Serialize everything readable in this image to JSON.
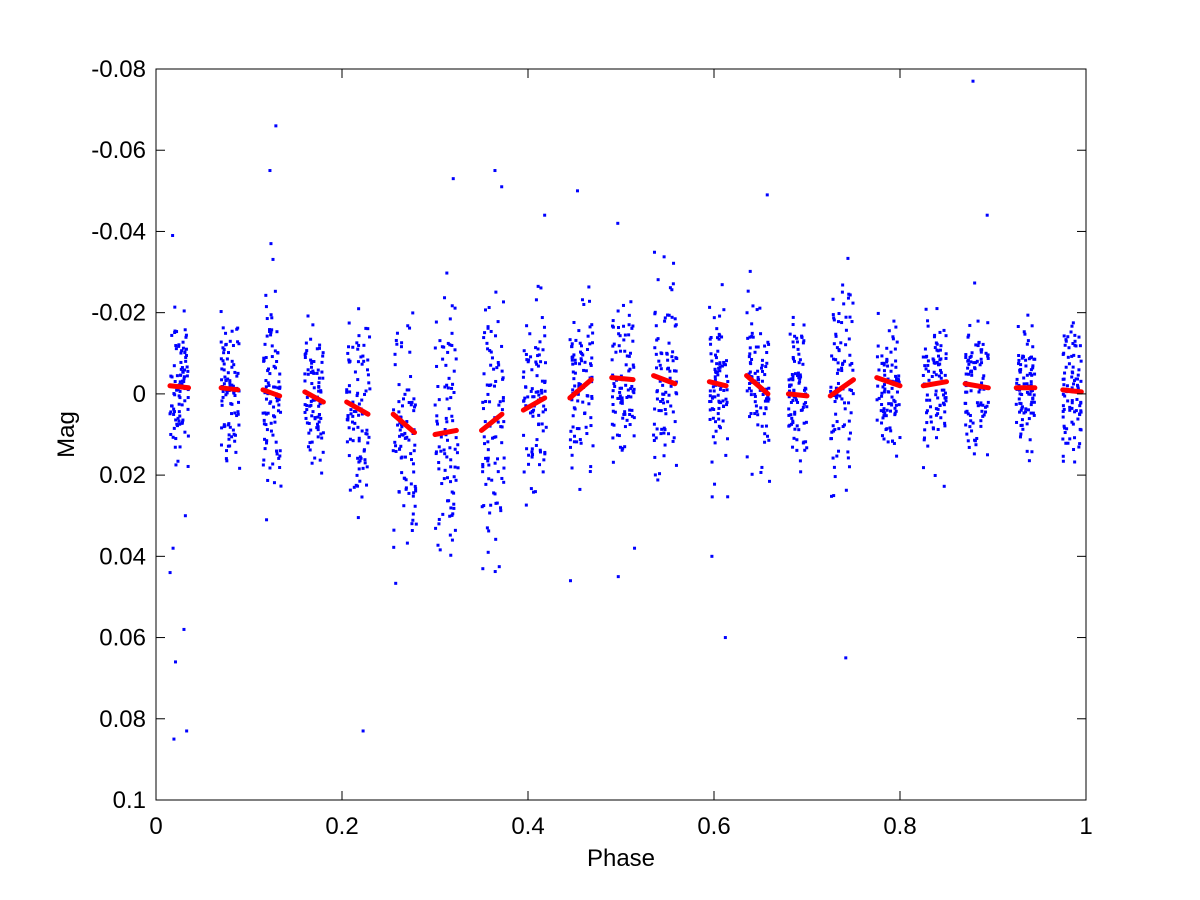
{
  "chart_data": {
    "type": "scatter",
    "title": "",
    "xlabel": "Phase",
    "ylabel": "Mag",
    "xlim": [
      0,
      1
    ],
    "ylim": [
      -0.08,
      0.1
    ],
    "y_reversed": true,
    "grid": false,
    "x_ticks": [
      "0",
      "0.2",
      "0.4",
      "0.6",
      "0.8",
      "1"
    ],
    "x_tick_values": [
      0,
      0.2,
      0.4,
      0.6,
      0.8,
      1.0
    ],
    "y_ticks": [
      "-0.08",
      "-0.06",
      "-0.04",
      "-0.02",
      "0",
      "0.02",
      "0.04",
      "0.06",
      "0.08",
      "0.1"
    ],
    "y_tick_values": [
      -0.08,
      -0.06,
      -0.04,
      -0.02,
      0,
      0.02,
      0.04,
      0.06,
      0.08,
      0.1
    ],
    "colors": {
      "observations": "#0000ff",
      "model": "#ff0000"
    },
    "series": [
      {
        "marker": "dot",
        "clusters": [
          {
            "x": [
              0.015,
              0.035
            ],
            "y_range": [
              -0.027,
              0.026
            ],
            "outliers": [
              -0.039,
              0.03,
              0.038,
              0.044,
              0.058,
              0.066,
              0.083,
              0.085
            ]
          },
          {
            "x": [
              0.07,
              0.09
            ],
            "y_range": [
              -0.029,
              0.025
            ]
          },
          {
            "x": [
              0.115,
              0.135
            ],
            "y_range": [
              -0.04,
              0.03
            ],
            "outliers": [
              -0.066,
              -0.055,
              -0.037,
              0.031
            ]
          },
          {
            "x": [
              0.16,
              0.18
            ],
            "y_range": [
              -0.022,
              0.031
            ]
          },
          {
            "x": [
              0.205,
              0.23
            ],
            "y_range": [
              -0.029,
              0.045
            ],
            "outliers": [
              0.083
            ]
          },
          {
            "x": [
              0.255,
              0.28
            ],
            "y_range": [
              -0.036,
              0.053
            ]
          },
          {
            "x": [
              0.3,
              0.325
            ],
            "y_range": [
              -0.046,
              0.06
            ],
            "outliers": [
              -0.053
            ]
          },
          {
            "x": [
              0.35,
              0.375
            ],
            "y_range": [
              -0.034,
              0.066
            ],
            "outliers": [
              -0.055,
              -0.051
            ]
          },
          {
            "x": [
              0.395,
              0.42
            ],
            "y_range": [
              -0.038,
              0.032
            ],
            "outliers": [
              -0.044
            ]
          },
          {
            "x": [
              0.445,
              0.47
            ],
            "y_range": [
              -0.032,
              0.035
            ],
            "outliers": [
              -0.05,
              0.046
            ]
          },
          {
            "x": [
              0.49,
              0.515
            ],
            "y_range": [
              -0.035,
              0.025
            ],
            "outliers": [
              -0.042,
              0.038,
              0.045
            ]
          },
          {
            "x": [
              0.535,
              0.56
            ],
            "y_range": [
              -0.05,
              0.025
            ]
          },
          {
            "x": [
              0.595,
              0.615
            ],
            "y_range": [
              -0.033,
              0.032
            ],
            "outliers": [
              0.04,
              0.06
            ]
          },
          {
            "x": [
              0.635,
              0.66
            ],
            "y_range": [
              -0.035,
              0.025
            ],
            "outliers": [
              -0.049
            ]
          },
          {
            "x": [
              0.68,
              0.7
            ],
            "y_range": [
              -0.023,
              0.026
            ]
          },
          {
            "x": [
              0.725,
              0.75
            ],
            "y_range": [
              -0.037,
              0.045
            ],
            "outliers": [
              0.065
            ]
          },
          {
            "x": [
              0.775,
              0.8
            ],
            "y_range": [
              -0.034,
              0.022
            ]
          },
          {
            "x": [
              0.825,
              0.85
            ],
            "y_range": [
              -0.027,
              0.027
            ]
          },
          {
            "x": [
              0.87,
              0.895
            ],
            "y_range": [
              -0.035,
              0.015
            ],
            "outliers": [
              -0.077,
              -0.044
            ]
          },
          {
            "x": [
              0.925,
              0.945
            ],
            "y_range": [
              -0.028,
              0.028
            ]
          },
          {
            "x": [
              0.975,
              0.995
            ],
            "y_range": [
              -0.023,
              0.029
            ]
          }
        ]
      },
      {
        "marker": "thick-segment",
        "segments": [
          {
            "x": [
              0.015,
              0.035
            ],
            "y": [
              -0.002,
              -0.0015
            ]
          },
          {
            "x": [
              0.07,
              0.088
            ],
            "y": [
              -0.0015,
              -0.001
            ]
          },
          {
            "x": [
              0.115,
              0.133
            ],
            "y": [
              -0.001,
              0.0005
            ]
          },
          {
            "x": [
              0.16,
              0.18
            ],
            "y": [
              -0.0005,
              0.002
            ]
          },
          {
            "x": [
              0.205,
              0.228
            ],
            "y": [
              0.002,
              0.005
            ]
          },
          {
            "x": [
              0.255,
              0.278
            ],
            "y": [
              0.005,
              0.0095
            ]
          },
          {
            "x": [
              0.3,
              0.323
            ],
            "y": [
              0.01,
              0.009
            ]
          },
          {
            "x": [
              0.35,
              0.372
            ],
            "y": [
              0.009,
              0.005
            ]
          },
          {
            "x": [
              0.395,
              0.418
            ],
            "y": [
              0.004,
              0.001
            ]
          },
          {
            "x": [
              0.445,
              0.468
            ],
            "y": [
              0.001,
              -0.0035
            ]
          },
          {
            "x": [
              0.49,
              0.513
            ],
            "y": [
              -0.004,
              -0.0035
            ]
          },
          {
            "x": [
              0.535,
              0.558
            ],
            "y": [
              -0.0045,
              -0.0025
            ]
          },
          {
            "x": [
              0.595,
              0.613
            ],
            "y": [
              -0.003,
              -0.002
            ]
          },
          {
            "x": [
              0.635,
              0.658
            ],
            "y": [
              -0.0045,
              0.0
            ]
          },
          {
            "x": [
              0.68,
              0.7
            ],
            "y": [
              0.0,
              0.0005
            ]
          },
          {
            "x": [
              0.725,
              0.75
            ],
            "y": [
              0.0005,
              -0.0035
            ]
          },
          {
            "x": [
              0.775,
              0.8
            ],
            "y": [
              -0.004,
              -0.002
            ]
          },
          {
            "x": [
              0.825,
              0.85
            ],
            "y": [
              -0.002,
              -0.003
            ]
          },
          {
            "x": [
              0.87,
              0.895
            ],
            "y": [
              -0.0025,
              -0.0015
            ]
          },
          {
            "x": [
              0.925,
              0.945
            ],
            "y": [
              -0.0015,
              -0.0015
            ]
          },
          {
            "x": [
              0.975,
              0.995
            ],
            "y": [
              -0.001,
              -0.0005
            ]
          }
        ]
      }
    ]
  }
}
